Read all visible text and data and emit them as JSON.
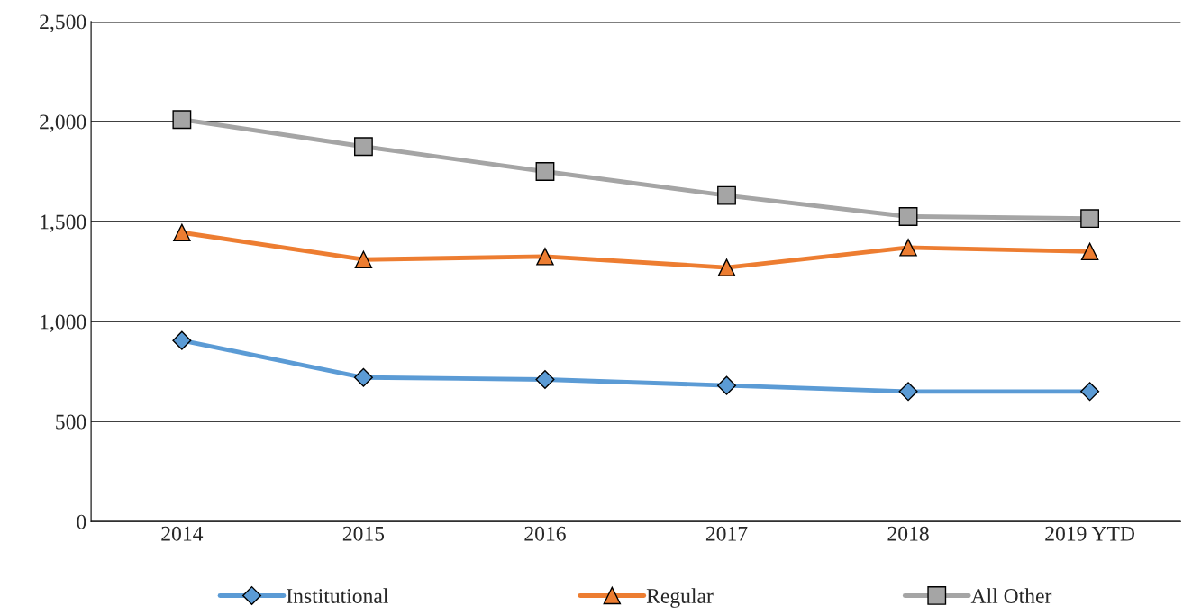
{
  "chart_data": {
    "type": "line",
    "categories": [
      "2014",
      "2015",
      "2016",
      "2017",
      "2018",
      "2019 YTD"
    ],
    "series": [
      {
        "name": "Institutional",
        "color": "#5b9bd5",
        "marker": "diamond",
        "values": [
          905,
          720,
          710,
          680,
          650,
          650
        ]
      },
      {
        "name": "Regular",
        "color": "#ed7d31",
        "marker": "triangle",
        "values": [
          1445,
          1310,
          1325,
          1270,
          1370,
          1350
        ]
      },
      {
        "name": "All Other",
        "color": "#a5a5a5",
        "marker": "square",
        "values": [
          2010,
          1875,
          1750,
          1630,
          1525,
          1515
        ]
      }
    ],
    "ylim": [
      0,
      2500
    ],
    "yticks": [
      {
        "value": 0,
        "label": "0"
      },
      {
        "value": 500,
        "label": "500"
      },
      {
        "value": 1000,
        "label": "1,000"
      },
      {
        "value": 1500,
        "label": "1,500"
      },
      {
        "value": 2000,
        "label": "2,000"
      },
      {
        "value": 2500,
        "label": "2,500"
      }
    ],
    "grid": "y",
    "legend": "bottom"
  }
}
